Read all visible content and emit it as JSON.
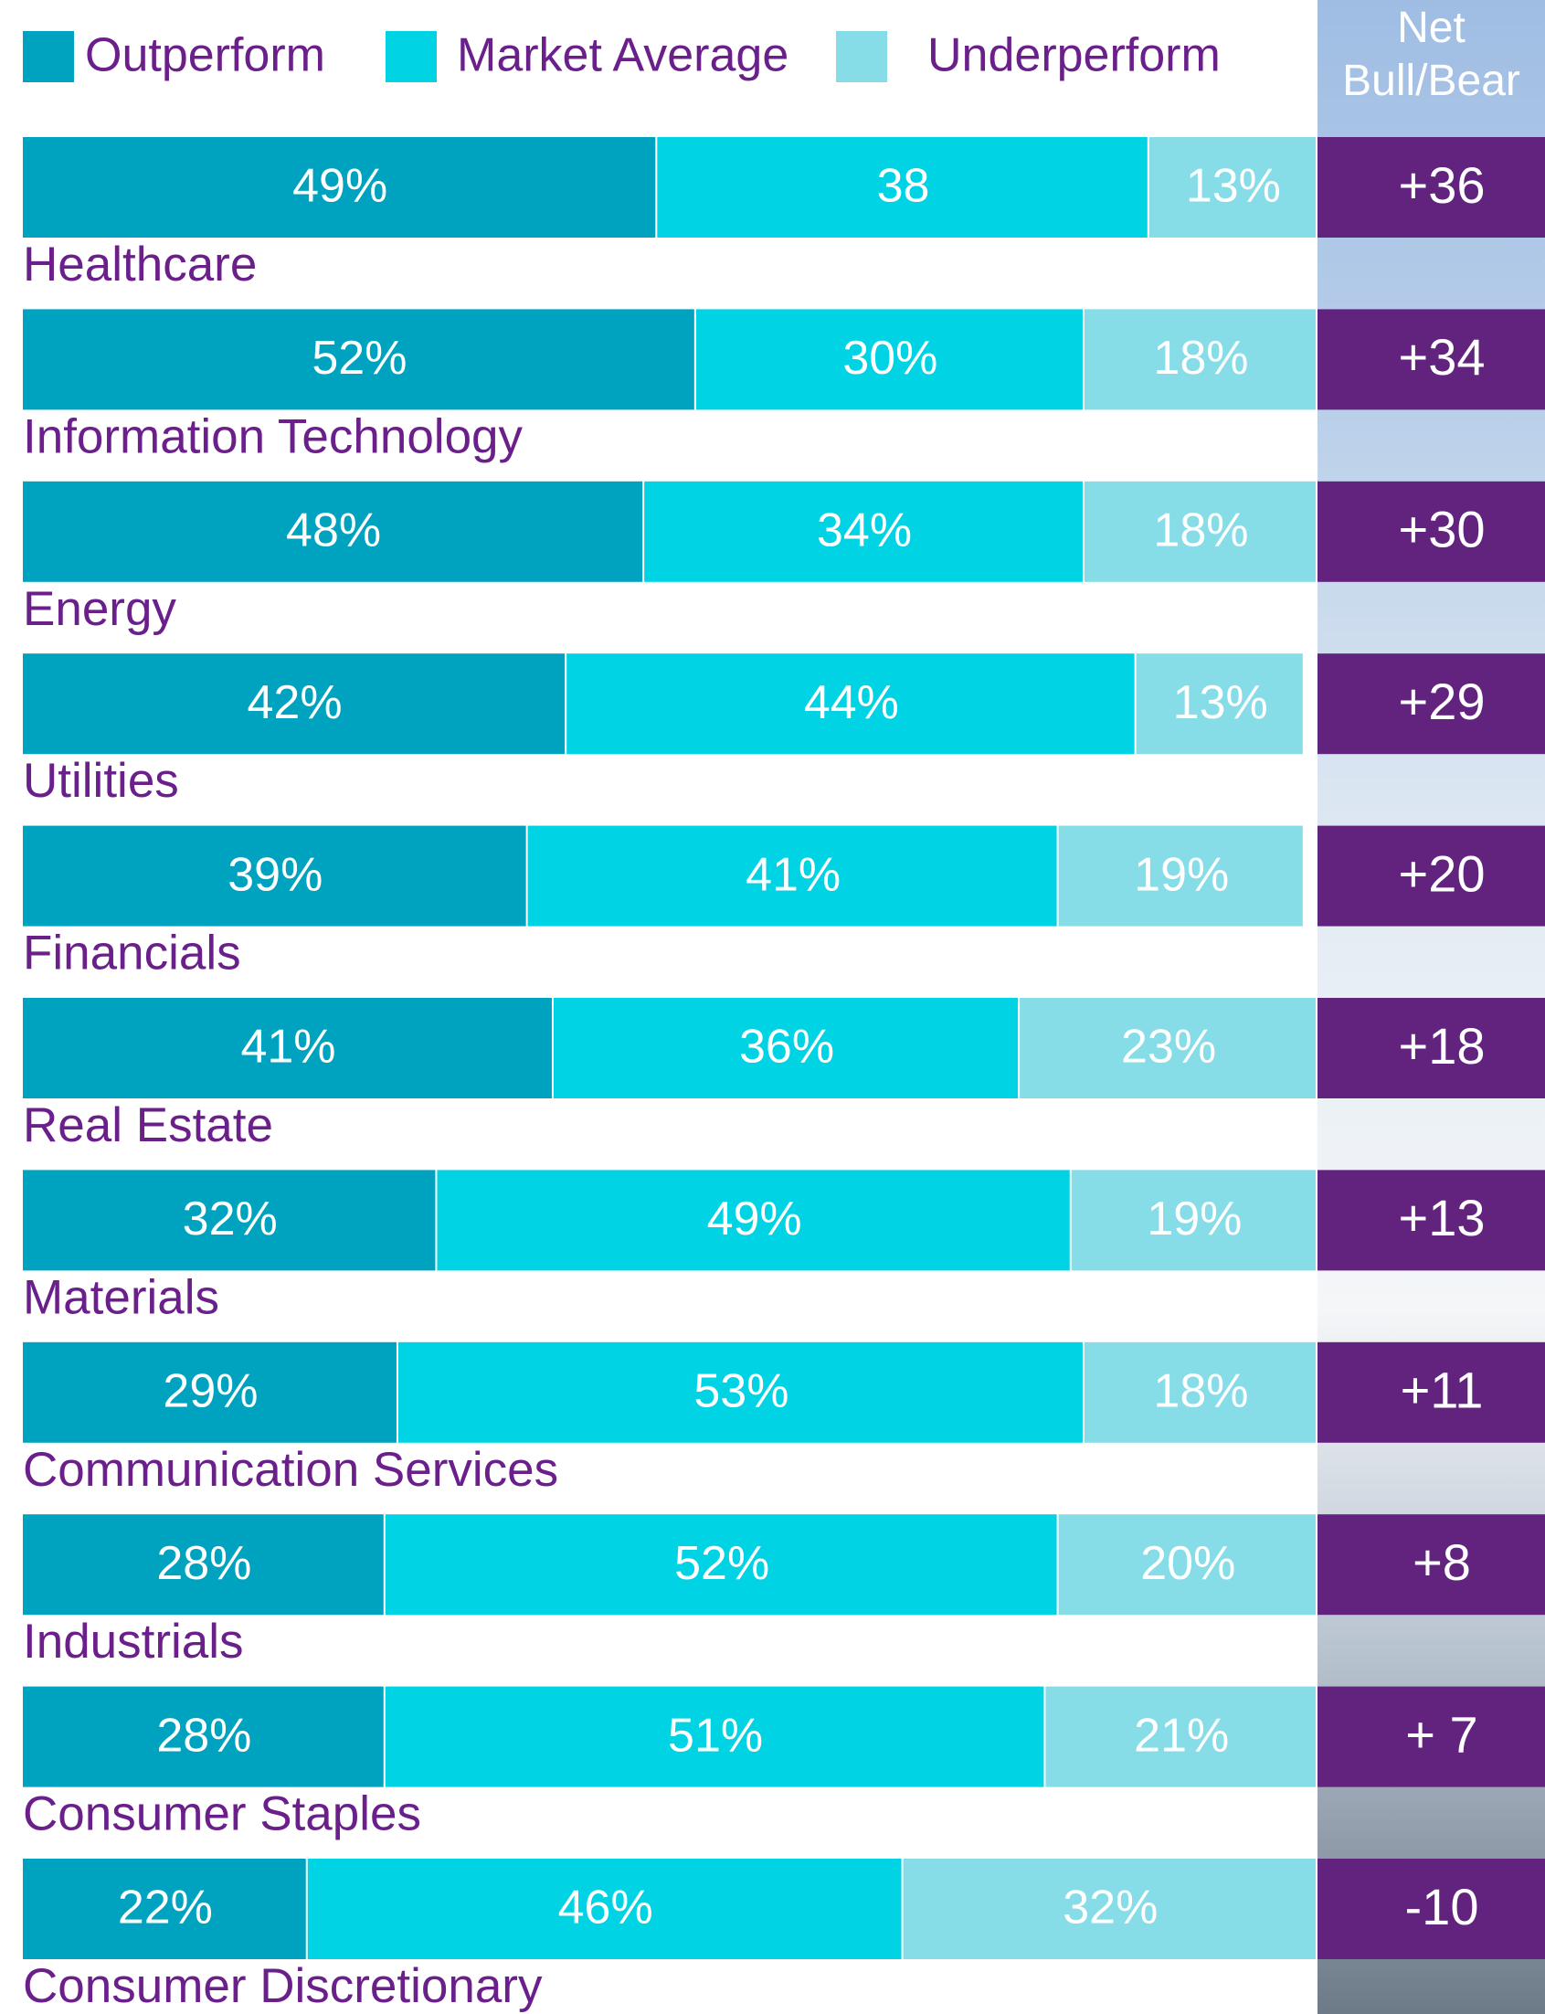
{
  "chart_data": {
    "type": "bar",
    "orientation": "horizontal",
    "stacked": true,
    "categories": [
      "Healthcare",
      "Information Technology",
      "Energy",
      "Utilities",
      "Financials",
      "Real Estate",
      "Materials",
      "Communication Services",
      "Industrials",
      "Consumer Staples",
      "Consumer Discretionary"
    ],
    "xlim": [
      0,
      100
    ],
    "series": [
      {
        "name": "Outperform",
        "color": "#00a3bf",
        "values": [
          49,
          52,
          48,
          42,
          39,
          41,
          32,
          29,
          28,
          28,
          22
        ],
        "value_labels": [
          "49%",
          "52%",
          "48%",
          "42%",
          "39%",
          "41%",
          "32%",
          "29%",
          "28%",
          "28%",
          "22%"
        ]
      },
      {
        "name": "Market Average",
        "color": "#00d3e4",
        "values": [
          38,
          30,
          34,
          44,
          41,
          36,
          49,
          53,
          52,
          51,
          46
        ],
        "value_labels": [
          "38",
          "30%",
          "34%",
          "44%",
          "41%",
          "36%",
          "49%",
          "53%",
          "52%",
          "51%",
          "46%"
        ]
      },
      {
        "name": "Underperform",
        "color": "#86dde8",
        "values": [
          13,
          18,
          18,
          13,
          19,
          23,
          19,
          18,
          20,
          21,
          32
        ],
        "value_labels": [
          "13%",
          "18%",
          "18%",
          "13%",
          "19%",
          "23%",
          "19%",
          "18%",
          "20%",
          "21%",
          "32%"
        ]
      }
    ],
    "net": {
      "title": "Net Bull/Bear",
      "color": "#62237f",
      "values": [
        36,
        34,
        30,
        29,
        20,
        18,
        13,
        11,
        8,
        7,
        -10
      ],
      "value_labels": [
        "+36",
        "+34",
        "+30",
        "+29",
        "+20",
        "+18",
        "+13",
        "+11",
        "+8",
        "+ 7",
        "-10"
      ]
    }
  }
}
